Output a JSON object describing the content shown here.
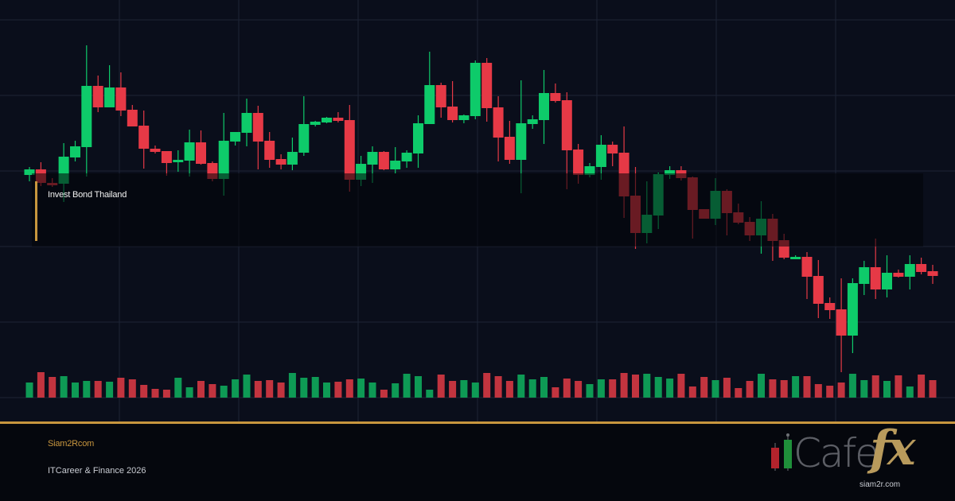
{
  "chart_data": {
    "type": "candlestick",
    "title": "",
    "xlabel": "",
    "ylabel": "",
    "ylim": [
      0,
      500
    ],
    "grid": true,
    "colors": {
      "up": "#0ecb6a",
      "down": "#e63946",
      "volume_up": "#0e9a55",
      "volume_down": "#c2343f",
      "grid": "#1d2436",
      "background": "#0a0e1b",
      "accent": "#c8963e"
    },
    "ohlc": [
      [
        280,
        290,
        272,
        287
      ],
      [
        287,
        296,
        266,
        270
      ],
      [
        270,
        276,
        265,
        267
      ],
      [
        269,
        320,
        246,
        303
      ],
      [
        302,
        323,
        297,
        316
      ],
      [
        315,
        443,
        278,
        392
      ],
      [
        392,
        405,
        359,
        365
      ],
      [
        365,
        418,
        365,
        390
      ],
      [
        390,
        409,
        354,
        361
      ],
      [
        362,
        368,
        341,
        341
      ],
      [
        342,
        361,
        288,
        313
      ],
      [
        313,
        317,
        307,
        309
      ],
      [
        310,
        310,
        279,
        295
      ],
      [
        296,
        311,
        284,
        299
      ],
      [
        298,
        337,
        278,
        321
      ],
      [
        321,
        336,
        293,
        294
      ],
      [
        295,
        297,
        272,
        275
      ],
      [
        275,
        358,
        254,
        323
      ],
      [
        322,
        334,
        317,
        334
      ],
      [
        333,
        376,
        316,
        358
      ],
      [
        358,
        367,
        287,
        322
      ],
      [
        323,
        334,
        289,
        299
      ],
      [
        300,
        306,
        287,
        293
      ],
      [
        293,
        327,
        286,
        309
      ],
      [
        308,
        379,
        304,
        344
      ],
      [
        343,
        348,
        341,
        347
      ],
      [
        346,
        353,
        345,
        352
      ],
      [
        352,
        359,
        346,
        348
      ],
      [
        349,
        368,
        259,
        274
      ],
      [
        274,
        304,
        266,
        294
      ],
      [
        293,
        316,
        270,
        309
      ],
      [
        309,
        310,
        286,
        287
      ],
      [
        287,
        315,
        282,
        298
      ],
      [
        297,
        311,
        289,
        308
      ],
      [
        307,
        355,
        289,
        345
      ],
      [
        344,
        435,
        344,
        393
      ],
      [
        393,
        396,
        352,
        365
      ],
      [
        366,
        398,
        346,
        349
      ],
      [
        349,
        356,
        345,
        355
      ],
      [
        354,
        424,
        350,
        421
      ],
      [
        421,
        427,
        347,
        364
      ],
      [
        365,
        379,
        297,
        327
      ],
      [
        328,
        348,
        294,
        299
      ],
      [
        299,
        399,
        257,
        345
      ],
      [
        344,
        355,
        338,
        350
      ],
      [
        349,
        412,
        319,
        383
      ],
      [
        383,
        395,
        371,
        373
      ],
      [
        374,
        384,
        262,
        311
      ],
      [
        312,
        319,
        269,
        280
      ],
      [
        280,
        295,
        277,
        291
      ],
      [
        290,
        330,
        274,
        318
      ],
      [
        318,
        322,
        291,
        307
      ],
      [
        308,
        341,
        226,
        253
      ],
      [
        254,
        290,
        187,
        207
      ],
      [
        207,
        272,
        194,
        230
      ],
      [
        229,
        283,
        212,
        281
      ],
      [
        280,
        291,
        275,
        286
      ],
      [
        286,
        291,
        273,
        276
      ],
      [
        277,
        278,
        200,
        236
      ],
      [
        237,
        237,
        225,
        225
      ],
      [
        225,
        276,
        217,
        260
      ],
      [
        260,
        262,
        204,
        232
      ],
      [
        233,
        244,
        218,
        220
      ],
      [
        221,
        227,
        197,
        204
      ],
      [
        204,
        247,
        181,
        225
      ],
      [
        225,
        231,
        172,
        197
      ],
      [
        198,
        206,
        174,
        176
      ],
      [
        174,
        179,
        174,
        177
      ],
      [
        177,
        183,
        124,
        152
      ],
      [
        153,
        173,
        100,
        118
      ],
      [
        119,
        126,
        99,
        110
      ],
      [
        111,
        150,
        32,
        78
      ],
      [
        78,
        150,
        56,
        144
      ],
      [
        143,
        172,
        129,
        164
      ],
      [
        164,
        200,
        124,
        136
      ],
      [
        136,
        179,
        126,
        157
      ],
      [
        157,
        161,
        151,
        152
      ],
      [
        152,
        179,
        136,
        168
      ],
      [
        168,
        176,
        155,
        158
      ],
      [
        159,
        167,
        143,
        153
      ]
    ],
    "volume": [
      19,
      32,
      26,
      27,
      19,
      21,
      21,
      20,
      25,
      23,
      16,
      11,
      10,
      25,
      13,
      21,
      17,
      15,
      23,
      29,
      21,
      22,
      19,
      31,
      25,
      26,
      19,
      20,
      23,
      24,
      19,
      10,
      18,
      30,
      27,
      10,
      29,
      21,
      22,
      19,
      31,
      27,
      21,
      29,
      23,
      26,
      13,
      24,
      21,
      17,
      23,
      23,
      31,
      29,
      30,
      26,
      24,
      30,
      14,
      26,
      22,
      25,
      12,
      21,
      30,
      23,
      22,
      27,
      27,
      17,
      15,
      19,
      30,
      22,
      28,
      21,
      28,
      14,
      29,
      22
    ],
    "volume_direction": "GRRGGGRGRRRRRGGRRGGGRRRGGGGRRGGRGGGGRRGGRRRGGGRRRGGRRRGGGRRRGRRRGRRGRRRRGGRGRGRR"
  },
  "overlay": {
    "label": "Invest Bond Thailand"
  },
  "footer": {
    "brand": "Siam2Rcom",
    "tagline": "ITCareer & Finance 2026"
  },
  "logo": {
    "word": "Cafe",
    "accent": "fx",
    "url": "siam2r.com"
  }
}
